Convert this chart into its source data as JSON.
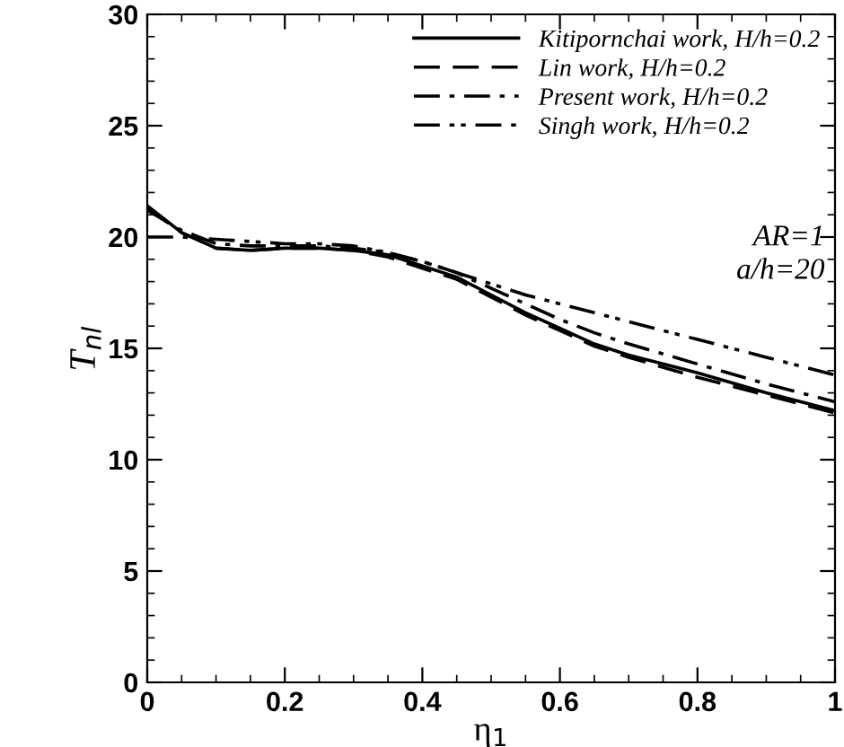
{
  "chart_data": {
    "type": "line",
    "xlabel": "η$_{1}$",
    "ylabel": "T$_{nl}$",
    "xlim": [
      0,
      1
    ],
    "ylim": [
      0,
      30
    ],
    "xticks": [
      0,
      0.2,
      0.4,
      0.6,
      0.8,
      1
    ],
    "yticks": [
      0,
      5,
      10,
      15,
      20,
      25,
      30
    ],
    "grid": false,
    "legend": "top right",
    "marker": "none",
    "x": [
      0,
      0.05,
      0.1,
      0.15,
      0.2,
      0.25,
      0.3,
      0.35,
      0.4,
      0.45,
      0.5,
      0.55,
      0.6,
      0.65,
      0.7,
      0.8,
      0.9,
      1
    ],
    "series": [
      {
        "name": "Kitipornchai work, H/h=0.2",
        "color": "#000000",
        "line_style": "solid",
        "values": [
          21.4,
          20.2,
          19.5,
          19.4,
          19.5,
          19.5,
          19.4,
          19.2,
          18.7,
          18.2,
          17.4,
          16.6,
          15.9,
          15.2,
          14.7,
          13.9,
          13.0,
          12.2
        ]
      },
      {
        "name": "Lin work, H/h=0.2",
        "color": "#000000",
        "line_style": "dashed",
        "values": [
          21.3,
          20.2,
          19.5,
          19.4,
          19.5,
          19.5,
          19.4,
          19.1,
          18.6,
          18.1,
          17.3,
          16.5,
          15.8,
          15.1,
          14.6,
          13.7,
          12.9,
          12.1
        ]
      },
      {
        "name": "Present work, H/h=0.2",
        "color": "#000000",
        "line_style": "dashdot",
        "values": [
          21.2,
          20.3,
          19.7,
          19.6,
          19.6,
          19.6,
          19.5,
          19.3,
          18.9,
          18.4,
          17.7,
          17.0,
          16.3,
          15.7,
          15.2,
          14.3,
          13.4,
          12.6
        ]
      },
      {
        "name": "Singh work, H/h=0.2",
        "color": "#000000",
        "line_style": "dashdotdot",
        "values": [
          20.0,
          20.0,
          19.9,
          19.8,
          19.7,
          19.7,
          19.6,
          19.3,
          18.9,
          18.4,
          17.9,
          17.4,
          17.0,
          16.6,
          16.2,
          15.4,
          14.6,
          13.8
        ]
      }
    ],
    "annotations": [
      "AR=1",
      "a/h=20"
    ]
  }
}
